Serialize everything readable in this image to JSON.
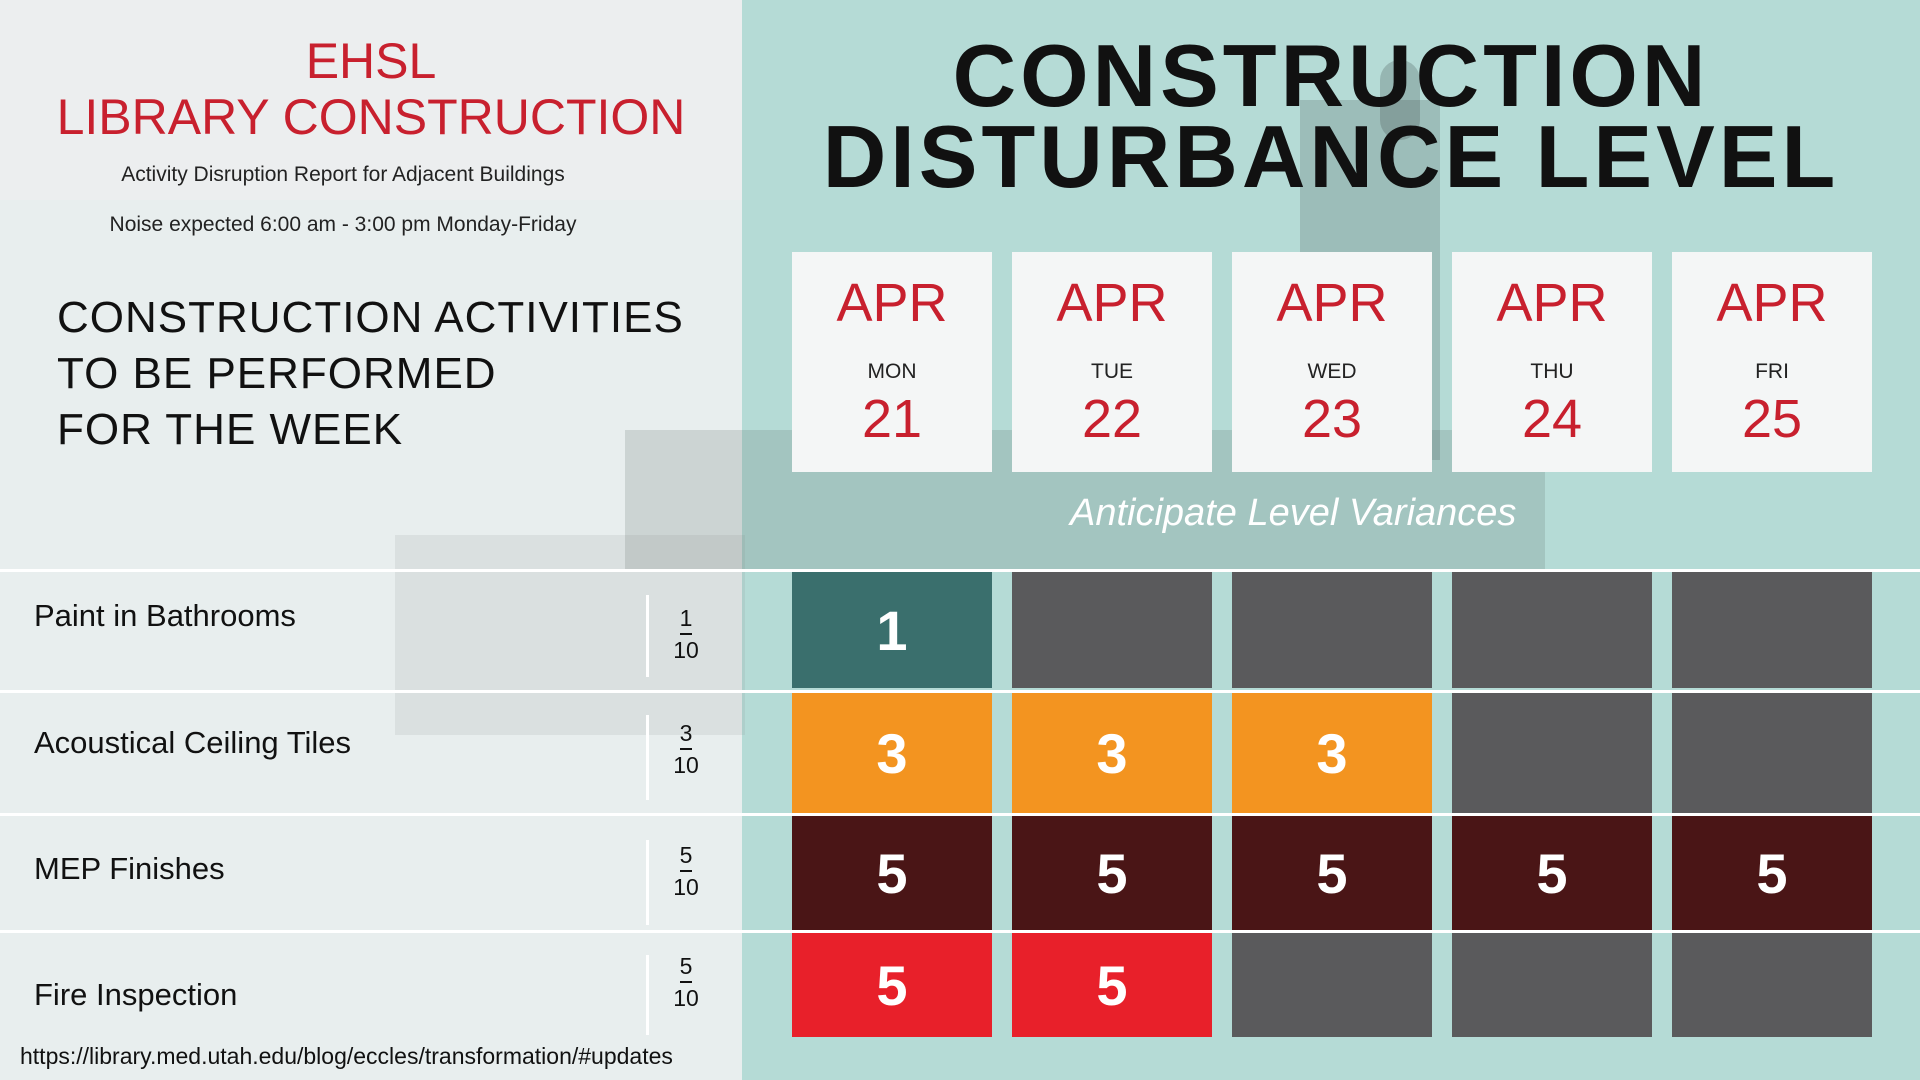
{
  "header": {
    "ehsl": "EHSL",
    "library_construction": "LIBRARY CONSTRUCTION",
    "report_subtitle": "Activity Disruption Report for Adjacent Buildings",
    "noise_note": "Noise expected 6:00 am - 3:00 pm Monday-Friday"
  },
  "activities_heading": {
    "line1": "CONSTRUCTION ACTIVITIES",
    "line2": "TO BE PERFORMED",
    "line3": "FOR THE WEEK"
  },
  "main_title": {
    "line1": "CONSTRUCTION",
    "line2": "DISTURBANCE LEVEL"
  },
  "days": [
    {
      "month": "APR",
      "dow": "MON",
      "date": "21"
    },
    {
      "month": "APR",
      "dow": "TUE",
      "date": "22"
    },
    {
      "month": "APR",
      "dow": "WED",
      "date": "23"
    },
    {
      "month": "APR",
      "dow": "THU",
      "date": "24"
    },
    {
      "month": "APR",
      "dow": "FRI",
      "date": "25"
    }
  ],
  "variance_note": "Anticipate Level Variances",
  "activities": [
    {
      "name": "Paint in Bathrooms",
      "level": "1",
      "out_of": "10",
      "color": "#3a6f6d",
      "cells": [
        "1",
        "",
        "",
        "",
        ""
      ]
    },
    {
      "name": "Acoustical Ceiling Tiles",
      "level": "3",
      "out_of": "10",
      "color": "#f39420",
      "cells": [
        "3",
        "3",
        "3",
        "",
        ""
      ]
    },
    {
      "name": "MEP Finishes",
      "level": "5",
      "out_of": "10",
      "color": "#4a1516",
      "cells": [
        "5",
        "5",
        "5",
        "5",
        "5"
      ]
    },
    {
      "name": "Fire Inspection",
      "level": "5",
      "out_of": "10",
      "color": "#e8202a",
      "cells": [
        "5",
        "5",
        "",
        "",
        ""
      ]
    }
  ],
  "footer_url": "https://library.med.utah.edu/blog/eccles/transformation/#updates",
  "colors": {
    "brand_red": "#c8202e",
    "teal_panel": "#b5dbd6",
    "empty_cell": "#5a5a5c"
  }
}
